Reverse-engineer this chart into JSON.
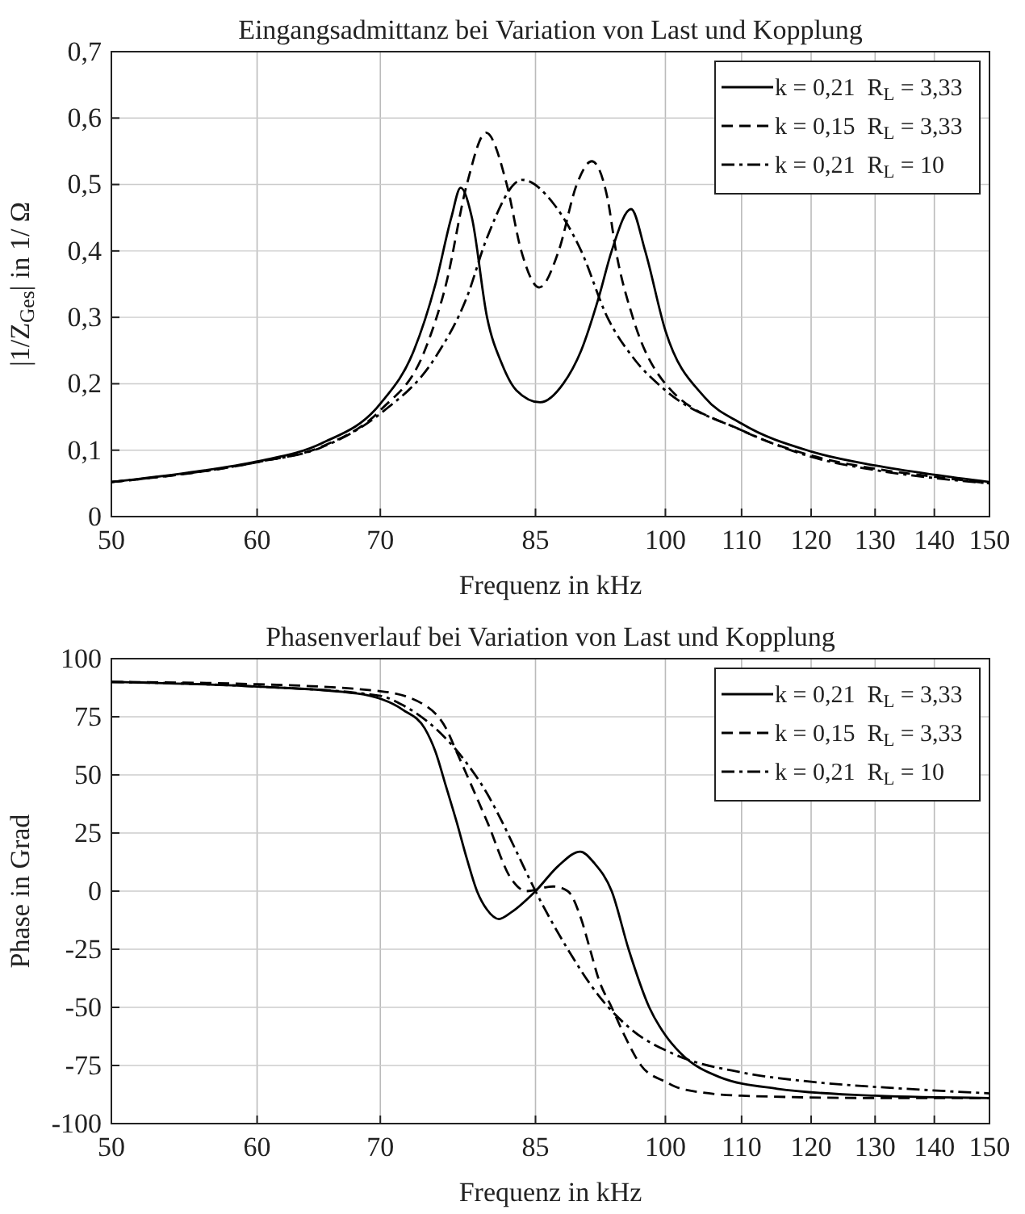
{
  "chart_data": [
    {
      "type": "line",
      "title": "Eingangsadmittanz bei Variation von Last und Kopplung",
      "xlabel": "Frequenz in kHz",
      "ylabel": "|1/Z$_{Ges}$| in 1/ Ω",
      "log": "x",
      "grid": true,
      "legend": "top right",
      "xlim": [
        50,
        150
      ],
      "xticks": [
        50,
        60,
        70,
        85,
        100,
        110,
        120,
        130,
        140,
        150
      ],
      "ylim": [
        0,
        0.7
      ],
      "yticks": [
        0,
        {
          "value": 0.1,
          "label": "0,1"
        },
        {
          "value": 0.2,
          "label": "0,2"
        },
        {
          "value": 0.3,
          "label": "0,3"
        },
        {
          "value": 0.4,
          "label": "0,4"
        },
        {
          "value": 0.5,
          "label": "0,5"
        },
        {
          "value": 0.6,
          "label": "0,6"
        },
        {
          "value": 0.7,
          "label": "0,7"
        }
      ],
      "series": [
        {
          "name": "k = 0,21  R$_{L}$ = 3,33",
          "color": "#000000",
          "line_style": "solid",
          "x": [
            50,
            55,
            60,
            65,
            70,
            73,
            75,
            76.5,
            77.4,
            78.5,
            80,
            81.5,
            83,
            85.5,
            88,
            90,
            92,
            93.5,
            95.8,
            97.5,
            100,
            105,
            110,
            120,
            130,
            140,
            150
          ],
          "values": [
            0.052,
            0.066,
            0.083,
            0.11,
            0.17,
            0.25,
            0.35,
            0.45,
            0.495,
            0.45,
            0.3,
            0.23,
            0.19,
            0.172,
            0.2,
            0.25,
            0.33,
            0.4,
            0.463,
            0.4,
            0.28,
            0.18,
            0.14,
            0.098,
            0.077,
            0.063,
            0.052
          ]
        },
        {
          "name": "k = 0,15  R$_{L}$ = 3,33",
          "color": "#000000",
          "line_style": "dashed",
          "x": [
            50,
            60,
            65,
            70,
            74,
            76,
            78,
            79.9,
            82,
            83.5,
            85.4,
            87.5,
            89.5,
            91.2,
            93,
            94,
            96,
            100,
            110,
            120,
            130,
            140,
            150
          ],
          "values": [
            0.052,
            0.082,
            0.105,
            0.16,
            0.25,
            0.35,
            0.5,
            0.578,
            0.5,
            0.4,
            0.345,
            0.4,
            0.5,
            0.535,
            0.48,
            0.4,
            0.3,
            0.2,
            0.13,
            0.092,
            0.072,
            0.06,
            0.05
          ]
        },
        {
          "name": "k = 0,21  R$_{L}$ = 10",
          "color": "#000000",
          "line_style": "dashdot",
          "x": [
            50,
            60,
            65,
            70,
            75,
            78,
            80,
            83.6,
            87,
            90,
            93,
            96,
            100,
            110,
            120,
            130,
            140,
            150
          ],
          "values": [
            0.052,
            0.082,
            0.104,
            0.155,
            0.24,
            0.33,
            0.42,
            0.507,
            0.47,
            0.4,
            0.3,
            0.24,
            0.19,
            0.13,
            0.09,
            0.07,
            0.058,
            0.05
          ]
        }
      ]
    },
    {
      "type": "line",
      "title": "Phasenverlauf bei Variation von Last und Kopplung",
      "xlabel": "Frequenz in kHz",
      "ylabel": "Phase in Grad",
      "log": "x",
      "grid": true,
      "legend": "top right",
      "xlim": [
        50,
        150
      ],
      "xticks": [
        50,
        60,
        70,
        85,
        100,
        110,
        120,
        130,
        140,
        150
      ],
      "ylim": [
        -100,
        100
      ],
      "yticks": [
        -100,
        -75,
        -50,
        -25,
        0,
        25,
        50,
        75,
        100
      ],
      "series": [
        {
          "name": "k = 0,21  R$_{L}$ = 3,33",
          "color": "#000000",
          "line_style": "solid",
          "x": [
            50,
            60,
            68,
            72,
            74,
            75,
            76,
            77,
            78,
            79,
            80,
            81.2,
            82.5,
            85,
            87.5,
            89.9,
            91.5,
            93.5,
            95.5,
            98,
            100,
            102,
            107,
            115,
            130,
            150
          ],
          "values": [
            90,
            88,
            85,
            78,
            70,
            60,
            45,
            30,
            14,
            0,
            -8,
            -12,
            -9,
            0,
            11,
            17,
            12,
            0,
            -25,
            -50,
            -62,
            -70,
            -80,
            -85,
            -88,
            -89
          ]
        },
        {
          "name": "k = 0,15  R$_{L}$ = 3,33",
          "color": "#000000",
          "line_style": "dashed",
          "x": [
            50,
            60,
            70,
            74,
            76,
            77,
            78.5,
            80,
            82.5,
            84,
            86.9,
            88.5,
            90,
            91,
            92,
            93.5,
            95,
            97,
            100,
            102,
            110,
            130,
            150
          ],
          "values": [
            90,
            89,
            86,
            80,
            70,
            60,
            45,
            30,
            5,
            0,
            2,
            0,
            -12,
            -25,
            -38,
            -50,
            -62,
            -75,
            -82,
            -85,
            -88,
            -89,
            -89
          ]
        },
        {
          "name": "k = 0,21  R$_{L}$ = 10",
          "color": "#000000",
          "line_style": "dashdot",
          "x": [
            50,
            60,
            70,
            72,
            75,
            78,
            80,
            81.5,
            83,
            85,
            88.5,
            92,
            96,
            101,
            110,
            120,
            135,
            150
          ],
          "values": [
            90,
            88,
            84,
            80,
            70,
            55,
            42,
            30,
            17,
            0,
            -25,
            -45,
            -60,
            -70,
            -78,
            -82,
            -85,
            -87
          ]
        }
      ]
    }
  ]
}
